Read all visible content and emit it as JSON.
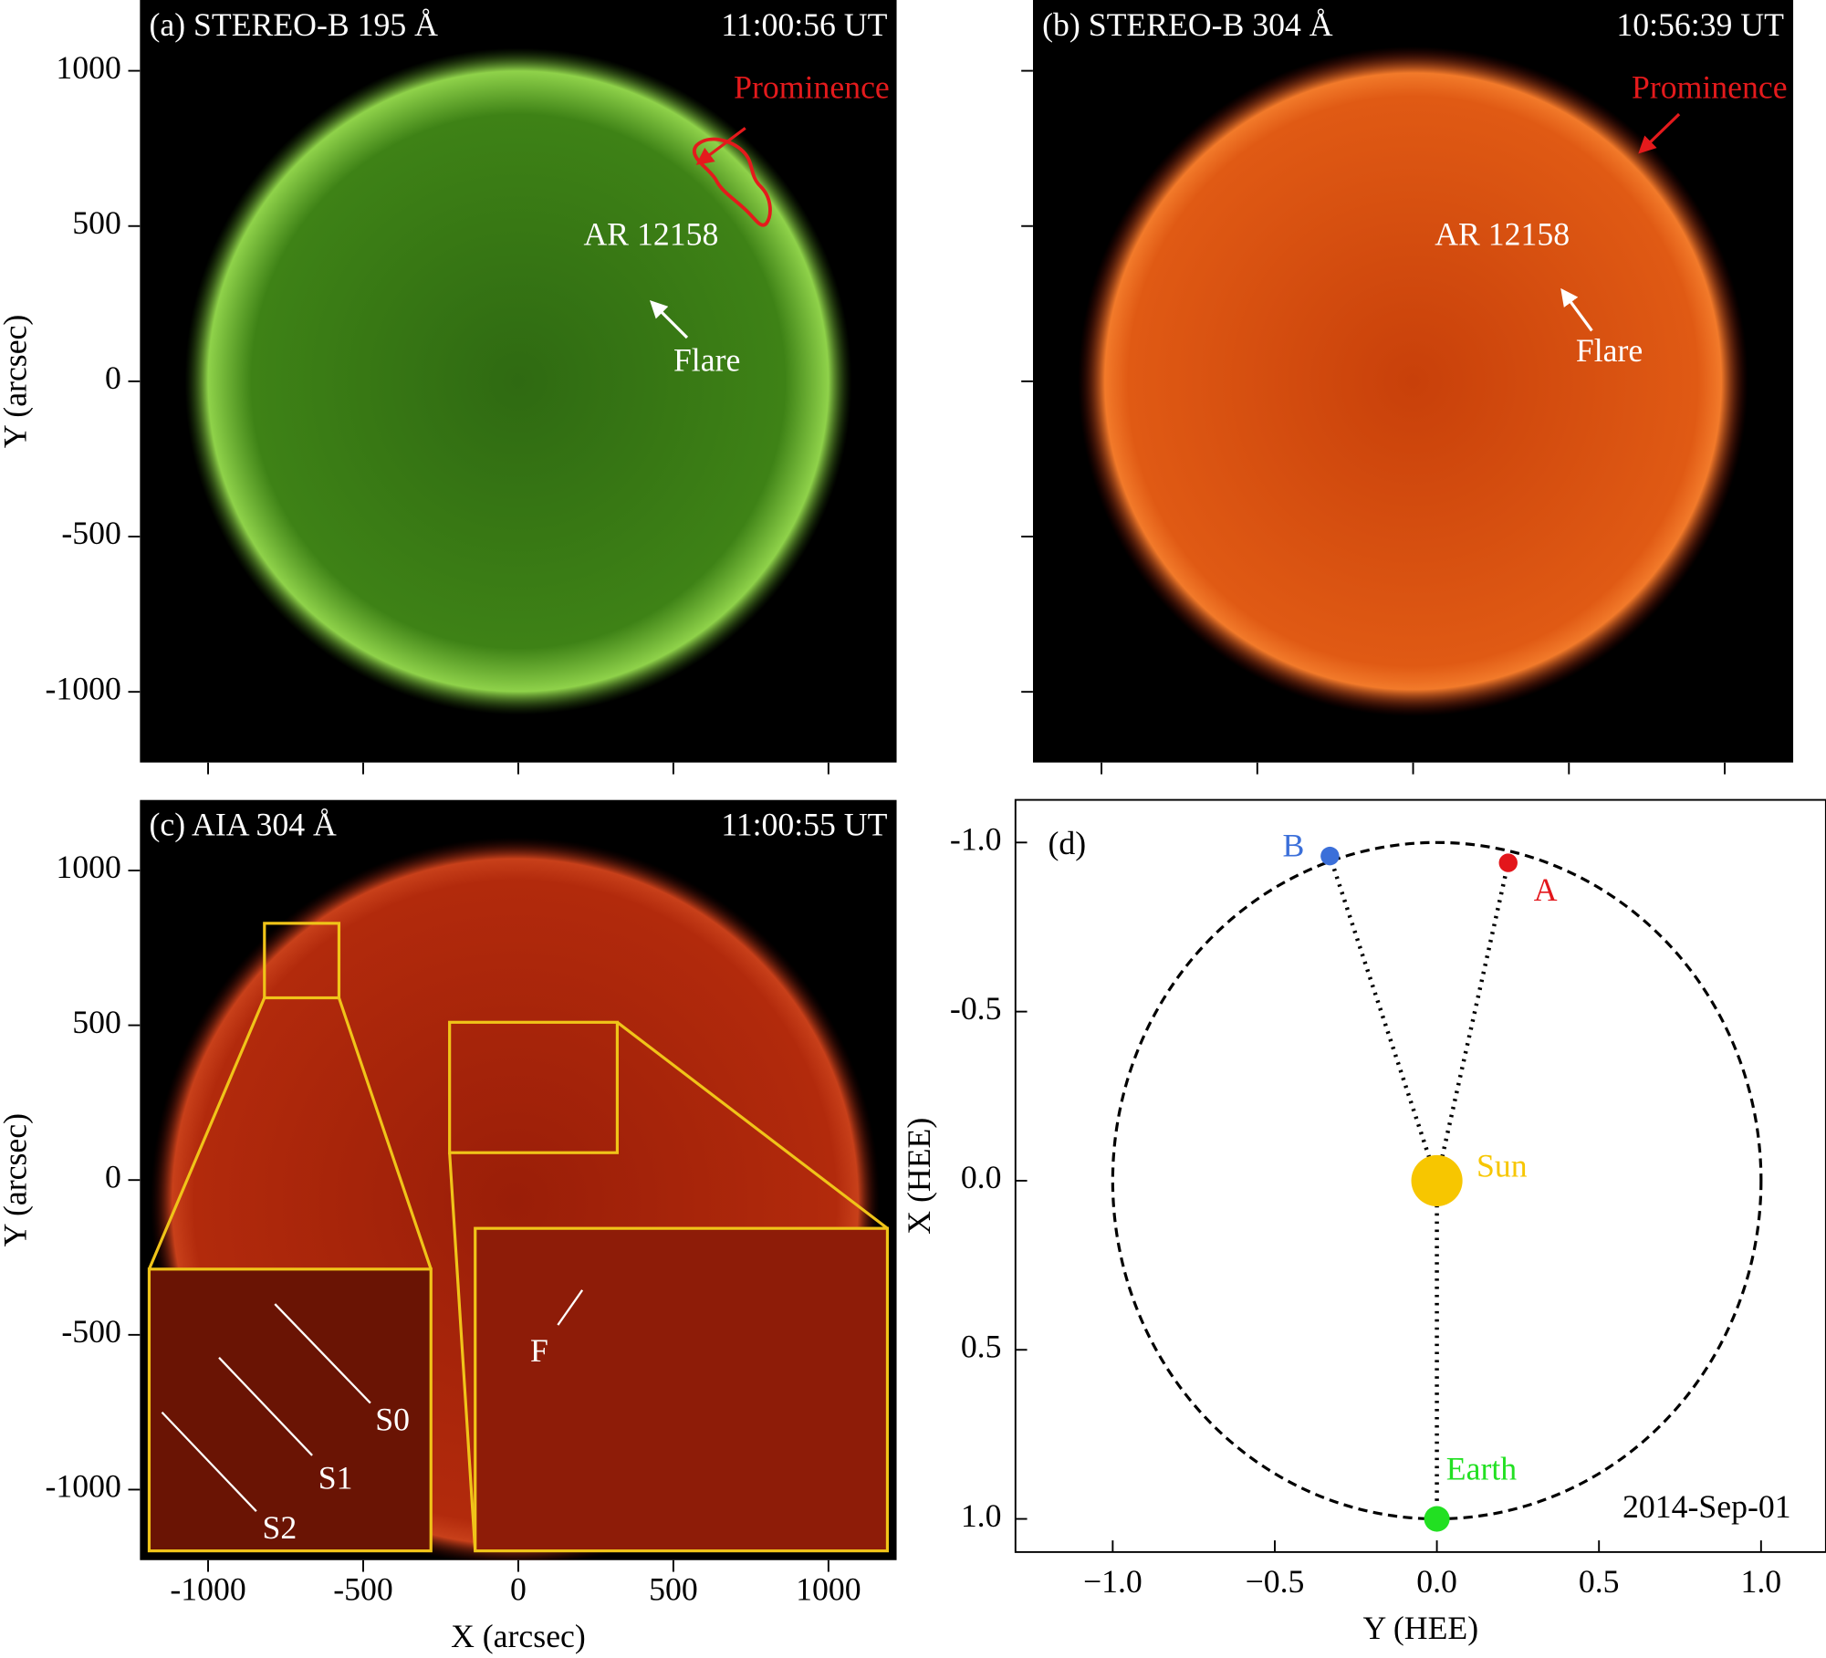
{
  "chart_data": [
    {
      "type": "image",
      "title": "(a) STEREO-B 195 Å",
      "timestamp": "11:00:56 UT",
      "ylabel": "Y (arcsec)",
      "xlim": [
        -1220,
        1220
      ],
      "ylim": [
        -1228,
        1228
      ],
      "yticks": [
        -1000,
        -500,
        0,
        500,
        1000
      ],
      "annotations": [
        {
          "text": "Prominence",
          "color": "#e41a1c"
        },
        {
          "text": "AR 12158",
          "color": "#ffffff"
        },
        {
          "text": "Flare",
          "color": "#ffffff"
        }
      ]
    },
    {
      "type": "image",
      "title": "(b) STEREO-B 304 Å",
      "timestamp": "10:56:39 UT",
      "xlim": [
        -1220,
        1220
      ],
      "ylim": [
        -1228,
        1228
      ],
      "annotations": [
        {
          "text": "Prominence",
          "color": "#e41a1c"
        },
        {
          "text": "AR 12158",
          "color": "#ffffff"
        },
        {
          "text": "Flare",
          "color": "#ffffff"
        }
      ]
    },
    {
      "type": "image",
      "title": "(c) AIA 304 Å",
      "timestamp": "11:00:55 UT",
      "xlabel": "X (arcsec)",
      "ylabel": "Y (arcsec)",
      "xlim": [
        -1220,
        1220
      ],
      "ylim": [
        -1228,
        1228
      ],
      "xticks": [
        -1000,
        -500,
        0,
        500,
        1000
      ],
      "yticks": [
        -1000,
        -500,
        0,
        500,
        1000
      ],
      "annotations": [
        {
          "text": "S0",
          "color": "#ffffff"
        },
        {
          "text": "S1",
          "color": "#ffffff"
        },
        {
          "text": "S2",
          "color": "#ffffff"
        },
        {
          "text": "F",
          "color": "#ffffff"
        }
      ]
    },
    {
      "type": "scatter",
      "title": "(d)",
      "date": "2014-Sep-01",
      "xlabel": "Y (HEE)",
      "ylabel": "X (HEE)",
      "xlim": [
        -1.3,
        1.2
      ],
      "ylim": [
        -1.126,
        1.098
      ],
      "y_inverted": true,
      "orbit_radius": 1,
      "xticks": [
        {
          "value": -1,
          "label": "−1.0"
        },
        {
          "value": -0.5,
          "label": "−0.5"
        },
        {
          "value": 0,
          "label": "0.0"
        },
        0.5,
        {
          "value": 1,
          "label": "1.0"
        }
      ],
      "yticks": [
        {
          "value": -1,
          "label": "-1.0"
        },
        {
          "value": -0.5,
          "label": "-0.5"
        },
        {
          "value": 0,
          "label": "0.0"
        },
        0.5,
        {
          "value": 1,
          "label": "1.0"
        }
      ],
      "series": [
        {
          "name": "B",
          "color": "#3b6fd9",
          "x": [
            -0.33
          ],
          "values": [
            -0.96
          ],
          "marker_size": 8
        },
        {
          "name": "A",
          "color": "#e3161b",
          "x": [
            0.22
          ],
          "values": [
            -0.94
          ],
          "marker_size": 8
        },
        {
          "name": "Sun",
          "color": "#f7c600",
          "x": [
            0
          ],
          "values": [
            0
          ],
          "marker_size": 22
        },
        {
          "name": "Earth",
          "color": "#22e022",
          "x": [
            0
          ],
          "values": [
            1.0
          ],
          "marker_size": 11
        }
      ]
    }
  ]
}
